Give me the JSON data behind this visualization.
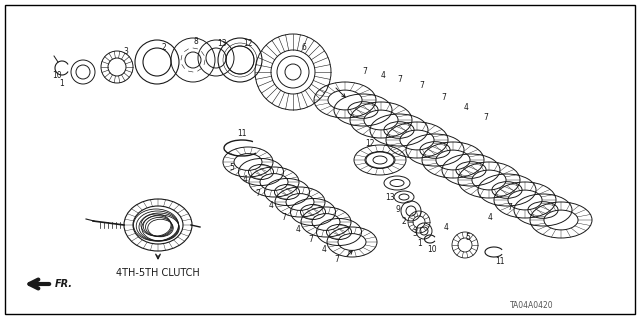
{
  "background_color": "#ffffff",
  "border_color": "#000000",
  "label_4th5th": "4TH-5TH CLUTCH",
  "part_code": "TA04A0420",
  "label_fr": "FR.",
  "fig_width": 6.4,
  "fig_height": 3.19,
  "dpi": 100,
  "line_color": "#1a1a1a",
  "text_color": "#1a1a1a",
  "font_size": 5.5,
  "clutch_label_fontsize": 7.0,
  "fr_fontsize": 7.0,
  "part_code_fontsize": 5.5
}
